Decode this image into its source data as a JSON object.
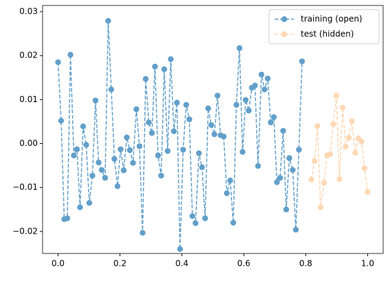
{
  "chart_data": {
    "type": "line",
    "xlim": [
      -0.05,
      1.05
    ],
    "ylim": [
      -0.025,
      0.0314
    ],
    "xticks": [
      {
        "value": 0,
        "label": "0.0"
      },
      {
        "value": 0.2,
        "label": "0.2"
      },
      {
        "value": 0.4,
        "label": "0.4"
      },
      {
        "value": 0.6,
        "label": "0.6"
      },
      {
        "value": 0.8,
        "label": "0.8"
      },
      {
        "value": 1.0,
        "label": "1.0"
      }
    ],
    "yticks": [
      {
        "value": -0.02,
        "label": "−0.02"
      },
      {
        "value": -0.01,
        "label": "−0.01"
      },
      {
        "value": 0,
        "label": "0.00"
      },
      {
        "value": 0.01,
        "label": "0.01"
      },
      {
        "value": 0.02,
        "label": "0.02"
      },
      {
        "value": 0.03,
        "label": "0.03"
      }
    ],
    "legend": "upper right",
    "series": [
      {
        "name": "training (open)",
        "color": "#1f77b4",
        "opacity": 0.7,
        "x": [
          0,
          0.01,
          0.02,
          0.03,
          0.04,
          0.051,
          0.061,
          0.071,
          0.081,
          0.091,
          0.101,
          0.111,
          0.121,
          0.131,
          0.141,
          0.152,
          0.162,
          0.172,
          0.182,
          0.192,
          0.202,
          0.212,
          0.222,
          0.232,
          0.242,
          0.253,
          0.263,
          0.273,
          0.283,
          0.293,
          0.303,
          0.313,
          0.323,
          0.333,
          0.343,
          0.354,
          0.364,
          0.374,
          0.384,
          0.394,
          0.404,
          0.414,
          0.424,
          0.434,
          0.444,
          0.455,
          0.465,
          0.475,
          0.485,
          0.495,
          0.505,
          0.515,
          0.525,
          0.535,
          0.545,
          0.556,
          0.566,
          0.576,
          0.586,
          0.596,
          0.606,
          0.616,
          0.626,
          0.636,
          0.646,
          0.657,
          0.667,
          0.677,
          0.687,
          0.697,
          0.707,
          0.717,
          0.727,
          0.737,
          0.747,
          0.758,
          0.768,
          0.778,
          0.788
        ],
        "values": [
          0.0185,
          0.0052,
          -0.0172,
          -0.017,
          0.0202,
          -0.0027,
          -0.0013,
          -0.0145,
          0.0039,
          -0.0003,
          -0.0135,
          -0.0073,
          0.0098,
          -0.0043,
          -0.006,
          -0.0078,
          0.0279,
          0.0123,
          -0.0035,
          -0.0097,
          -0.0013,
          -0.0061,
          0.0014,
          -0.0015,
          -0.0044,
          0.0078,
          -0.0006,
          -0.0203,
          0.0147,
          0.0048,
          0.0024,
          0.0175,
          -0.0027,
          -0.0073,
          0.0169,
          -0.0017,
          0.0192,
          0.0028,
          0.0093,
          -0.024,
          -0.0014,
          0.0088,
          0.0055,
          -0.0165,
          -0.0181,
          -0.0022,
          -0.0054,
          -0.017,
          0.008,
          0.0042,
          0.0021,
          0.0109,
          0.0019,
          0.0016,
          -0.0113,
          -0.0084,
          -0.018,
          0.0088,
          0.0217,
          -0.0019,
          0.0099,
          0.0075,
          0.0127,
          0.0132,
          -0.0051,
          0.0157,
          0.0123,
          0.0148,
          0.0048,
          0.006,
          -0.0088,
          -0.0078,
          0.0029,
          -0.015,
          -0.0033,
          -0.006,
          -0.0196,
          -0.0014,
          0.0187
        ]
      },
      {
        "name": "test (hidden)",
        "color": "#ff7f0e",
        "opacity": 0.3,
        "x": [
          0.818,
          0.828,
          0.838,
          0.848,
          0.859,
          0.869,
          0.879,
          0.889,
          0.899,
          0.909,
          0.919,
          0.929,
          0.939,
          0.949,
          0.96,
          0.97,
          0.98,
          0.99,
          1.0
        ],
        "values": [
          -0.0082,
          -0.004,
          0.004,
          -0.0145,
          -0.0089,
          -0.0027,
          -0.0024,
          0.0044,
          0.0109,
          -0.0081,
          0.0082,
          -0.0007,
          0.0013,
          0.0051,
          -0.0021,
          0.0012,
          0.0005,
          -0.0056,
          -0.011
        ]
      }
    ]
  }
}
